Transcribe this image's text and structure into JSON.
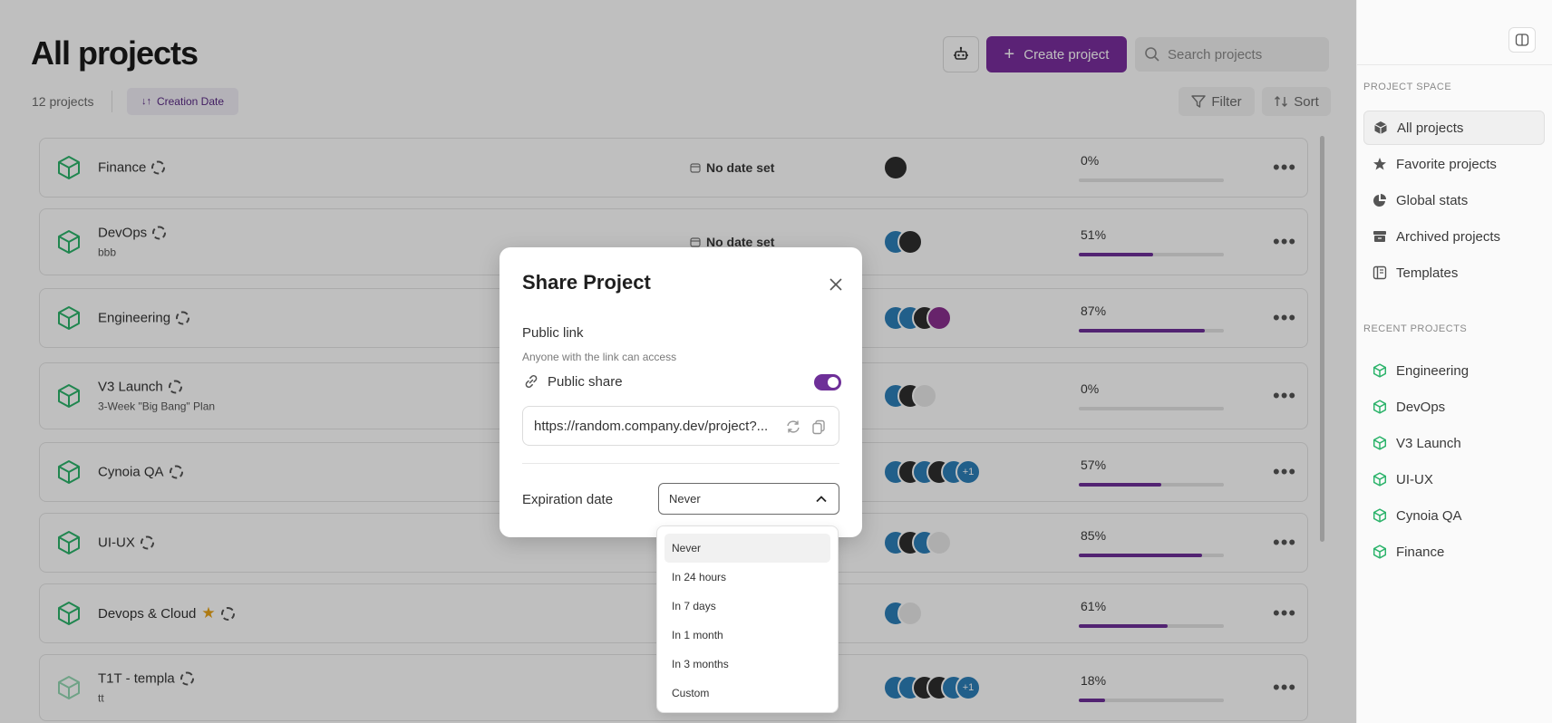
{
  "header": {
    "title": "All projects",
    "create_label": "Create project",
    "search_placeholder": "Search projects",
    "count_text": "12 projects",
    "sort_chip_label": "Creation Date",
    "filter_label": "Filter",
    "sort_label": "Sort"
  },
  "projects": [
    {
      "name": "Finance",
      "sub": "",
      "date": "No date set",
      "progress_pct": 0,
      "progress_label": "0%",
      "starred": false,
      "avatars": [
        "dark"
      ],
      "extra": ""
    },
    {
      "name": "DevOps",
      "sub": "bbb",
      "date": "No date set",
      "progress_pct": 51,
      "progress_label": "51%",
      "starred": false,
      "avatars": [
        "blue",
        "dark"
      ],
      "extra": ""
    },
    {
      "name": "Engineering",
      "sub": "",
      "date": "",
      "progress_pct": 87,
      "progress_label": "87%",
      "starred": false,
      "avatars": [
        "blue",
        "blue",
        "dark",
        "purple"
      ],
      "extra": ""
    },
    {
      "name": "V3 Launch",
      "sub": "3-Week \"Big Bang\" Plan",
      "date": "",
      "progress_pct": 0,
      "progress_label": "0%",
      "starred": false,
      "avatars": [
        "blue",
        "dark",
        "light"
      ],
      "extra": ""
    },
    {
      "name": "Cynoia QA",
      "sub": "",
      "date": "",
      "progress_pct": 57,
      "progress_label": "57%",
      "starred": false,
      "avatars": [
        "blue",
        "dark",
        "blue",
        "dark",
        "blue"
      ],
      "extra": "+1"
    },
    {
      "name": "UI-UX",
      "sub": "",
      "date": "",
      "progress_pct": 85,
      "progress_label": "85%",
      "starred": false,
      "avatars": [
        "blue",
        "dark",
        "blue",
        "light"
      ],
      "extra": ""
    },
    {
      "name": "Devops & Cloud",
      "sub": "",
      "date": "",
      "progress_pct": 61,
      "progress_label": "61%",
      "starred": true,
      "avatars": [
        "blue",
        "light"
      ],
      "extra": ""
    },
    {
      "name": "T1T - templa",
      "sub": "tt",
      "date": "",
      "progress_pct": 18,
      "progress_label": "18%",
      "starred": false,
      "avatars": [
        "blue",
        "blue",
        "dark",
        "dark",
        "blue"
      ],
      "extra": "+1"
    }
  ],
  "sidebar": {
    "section_project_space": "PROJECT SPACE",
    "nav": [
      {
        "label": "All projects",
        "icon": "cube-icon",
        "active": true
      },
      {
        "label": "Favorite projects",
        "icon": "star-icon",
        "active": false
      },
      {
        "label": "Global stats",
        "icon": "pie-chart-icon",
        "active": false
      },
      {
        "label": "Archived projects",
        "icon": "archive-icon",
        "active": false
      },
      {
        "label": "Templates",
        "icon": "template-icon",
        "active": false
      }
    ],
    "section_recent": "RECENT PROJECTS",
    "recent": [
      "Engineering",
      "DevOps",
      "V3 Launch",
      "UI-UX",
      "Cynoia QA",
      "Finance"
    ]
  },
  "modal": {
    "title": "Share Project",
    "public_link_label": "Public link",
    "public_link_help": "Anyone with the link can access",
    "public_share_label": "Public share",
    "public_share_on": true,
    "link_value": "https://random.company.dev/project?...",
    "expiration_label": "Expiration date",
    "expiration_value": "Never",
    "expiration_options": [
      "Never",
      "In 24 hours",
      "In 7 days",
      "In 1 month",
      "In 3 months",
      "Custom"
    ]
  },
  "colors": {
    "accent": "#7a2e9e",
    "progress": "#6e2f98",
    "cube": "#2bb36a",
    "star": "#e8a317"
  }
}
